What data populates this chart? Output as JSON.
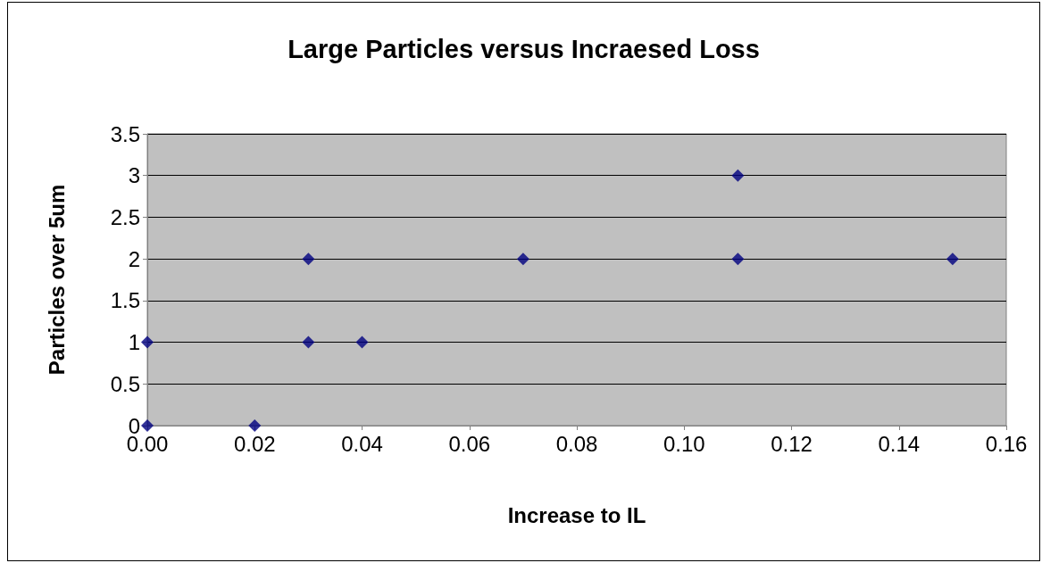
{
  "chart_data": {
    "type": "scatter",
    "title": "Large Particles versus Incraesed Loss",
    "xlabel": "Increase to IL",
    "ylabel": "Particles over 5um",
    "x": [
      0,
      0,
      0.02,
      0.03,
      0.03,
      0.04,
      0.07,
      0.11,
      0.11,
      0.15
    ],
    "series": [
      {
        "color": "#000080",
        "values": [
          1,
          0,
          0,
          2,
          1,
          1,
          2,
          3,
          2,
          2
        ]
      }
    ],
    "xlim": [
      0,
      0.16
    ],
    "xticks": [
      {
        "value": 0,
        "label": "0.00"
      },
      {
        "value": 0.02,
        "label": "0.02"
      },
      {
        "value": 0.04,
        "label": "0.04"
      },
      {
        "value": 0.06,
        "label": "0.06"
      },
      {
        "value": 0.08,
        "label": "0.08"
      },
      {
        "value": 0.1,
        "label": "0.10"
      },
      {
        "value": 0.12,
        "label": "0.12"
      },
      {
        "value": 0.14,
        "label": "0.14"
      },
      {
        "value": 0.16,
        "label": "0.16"
      }
    ],
    "ylim": [
      0,
      3.5
    ],
    "yticks": [
      0,
      0.5,
      1,
      1.5,
      2,
      2.5,
      3,
      3.5
    ],
    "grid": "y",
    "marker": "diamond"
  }
}
